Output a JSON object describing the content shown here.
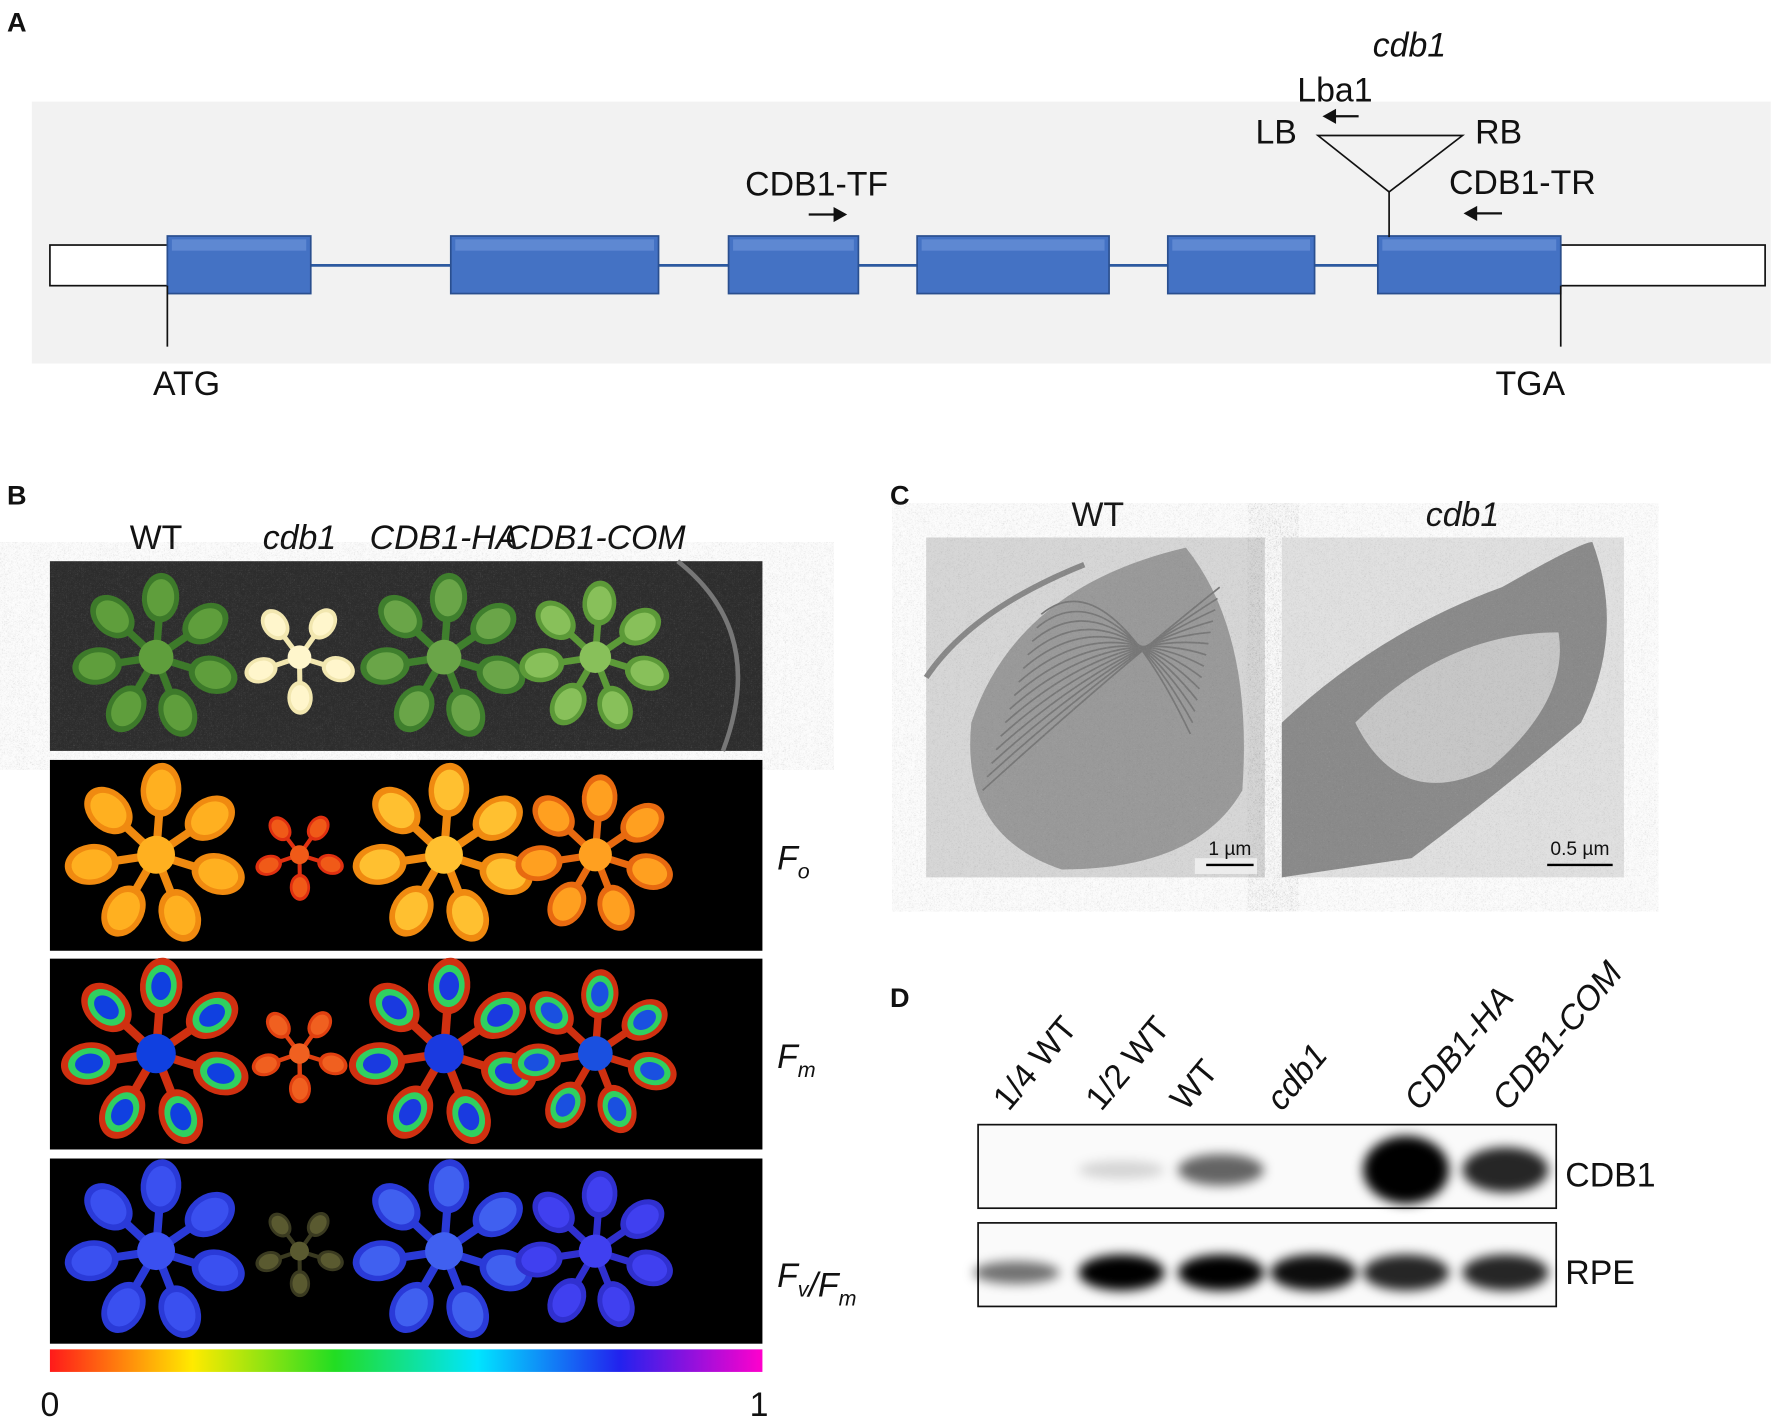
{
  "panels": {
    "a": "A",
    "b": "B",
    "c": "C",
    "d": "D"
  },
  "gene": {
    "allele": "cdb1",
    "primer_lba": "Lba1",
    "lb": "LB",
    "rb": "RB",
    "primer_tf": "CDB1-TF",
    "primer_tr": "CDB1-TR",
    "start": "ATG",
    "stop": "TGA"
  },
  "panel_b": {
    "columns": [
      "WT",
      "cdb1",
      "CDB1-HA",
      "CDB1-COM"
    ],
    "rows": [
      [
        {
          "text": "F",
          "sub": "o"
        }
      ],
      [
        {
          "text": "F",
          "sub": "m"
        }
      ],
      [
        {
          "text": "F",
          "sub": "v"
        },
        {
          "text": "/F",
          "sub": "m"
        }
      ]
    ],
    "scale_min": "0",
    "scale_max": "1"
  },
  "panel_c": {
    "labels": [
      "WT",
      "cdb1"
    ],
    "scale_bars": [
      "1 µm",
      "0.5 µm"
    ]
  },
  "panel_d": {
    "lanes": [
      "1/4 WT",
      "1/2 WT",
      "WT",
      "cdb1",
      "CDB1-HA",
      "CDB1-COM"
    ],
    "bands": [
      "CDB1",
      "RPE"
    ]
  }
}
